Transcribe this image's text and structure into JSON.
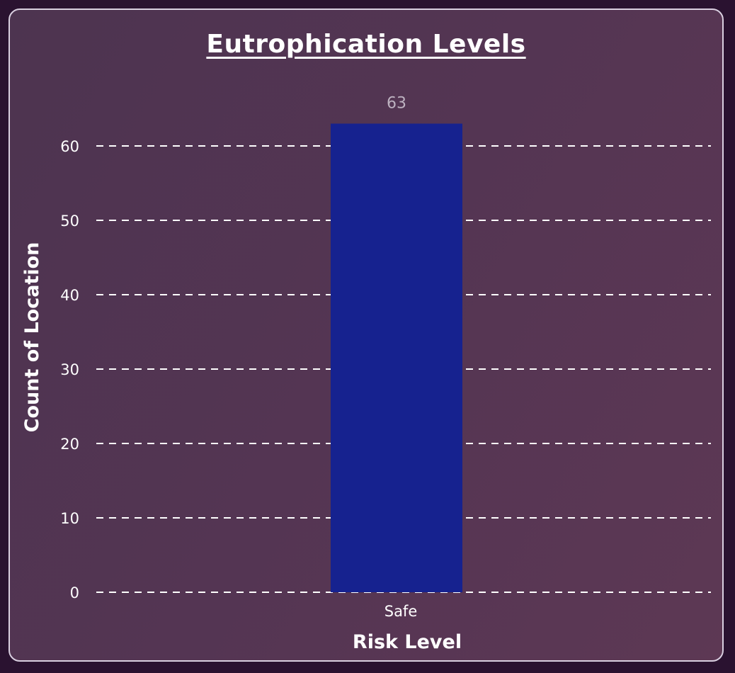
{
  "chart_data": {
    "type": "bar",
    "title": "Eutrophication Levels",
    "xlabel": "Risk Level",
    "ylabel": "Count of Location",
    "categories": [
      "Safe"
    ],
    "values": [
      63
    ],
    "data_labels": [
      "63"
    ],
    "ylim": [
      0,
      60
    ],
    "yticks": [
      0,
      10,
      20,
      30,
      40,
      50,
      60
    ],
    "grid": true,
    "grid_style": "dashed",
    "legend": "none",
    "bar_color": "#16228f",
    "background_color": "#523652",
    "text_color": "#ffffff"
  }
}
